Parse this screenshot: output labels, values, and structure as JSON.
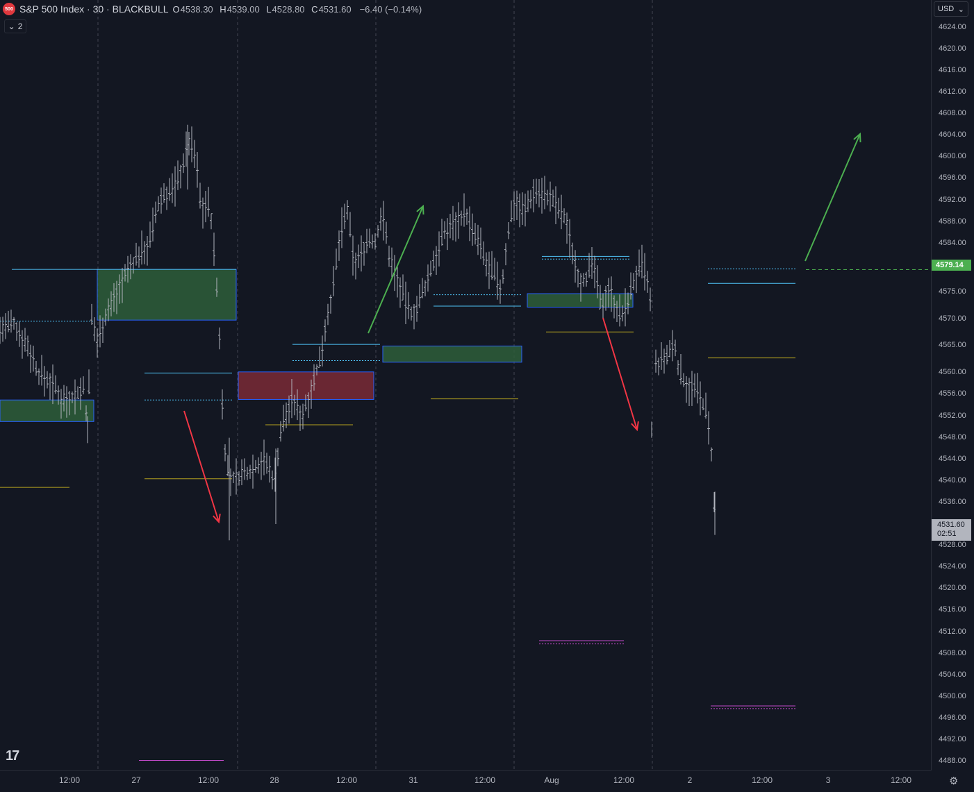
{
  "header": {
    "symbol_badge": "500",
    "title": "S&P 500 Index · 30 · BLACKBULL",
    "ohlc": [
      {
        "key": "O",
        "value": "4538.30"
      },
      {
        "key": "H",
        "value": "4539.00"
      },
      {
        "key": "L",
        "value": "4528.80"
      },
      {
        "key": "C",
        "value": "4531.60"
      }
    ],
    "change": "−6.40 (−0.14%)",
    "collapse_count": "2"
  },
  "currency": {
    "label": "USD",
    "icon": "chevron-down-icon"
  },
  "price_axis": {
    "min": 4487.5,
    "max": 4625,
    "ticks": [
      "4624.00",
      "4620.00",
      "4616.00",
      "4612.00",
      "4608.00",
      "4604.00",
      "4600.00",
      "4596.00",
      "4592.00",
      "4588.00",
      "4584.00",
      "4575.00",
      "4570.00",
      "4565.00",
      "4560.00",
      "4556.00",
      "4552.00",
      "4548.00",
      "4544.00",
      "4540.00",
      "4536.00",
      "4528.00",
      "4524.00",
      "4520.00",
      "4516.00",
      "4512.00",
      "4508.00",
      "4504.00",
      "4500.00",
      "4496.00",
      "4492.00",
      "4488.00"
    ],
    "last_price": "4531.60",
    "countdown": "02:51",
    "target_label": "4579.14",
    "target_color": "#4caf50"
  },
  "time_axis": {
    "ticks": [
      "12:00",
      "27",
      "12:00",
      "28",
      "12:00",
      "31",
      "12:00",
      "Aug",
      "12:00",
      "2",
      "12:00",
      "3",
      "12:00"
    ]
  },
  "colors": {
    "background": "#131722",
    "bar": "#b2b5be",
    "demand_zone": "#2e5e3a",
    "supply_zone": "#7a2a36",
    "zone_border": "#2962ff",
    "cyan_line": "#4fc3f7",
    "olive_line": "#b5a21f",
    "magenta_line": "#c24ac8",
    "up_arrow": "#4caf50",
    "down_arrow": "#f23645"
  },
  "icons": {
    "logo": "tradingview-logo",
    "settings": "gear-icon"
  }
}
